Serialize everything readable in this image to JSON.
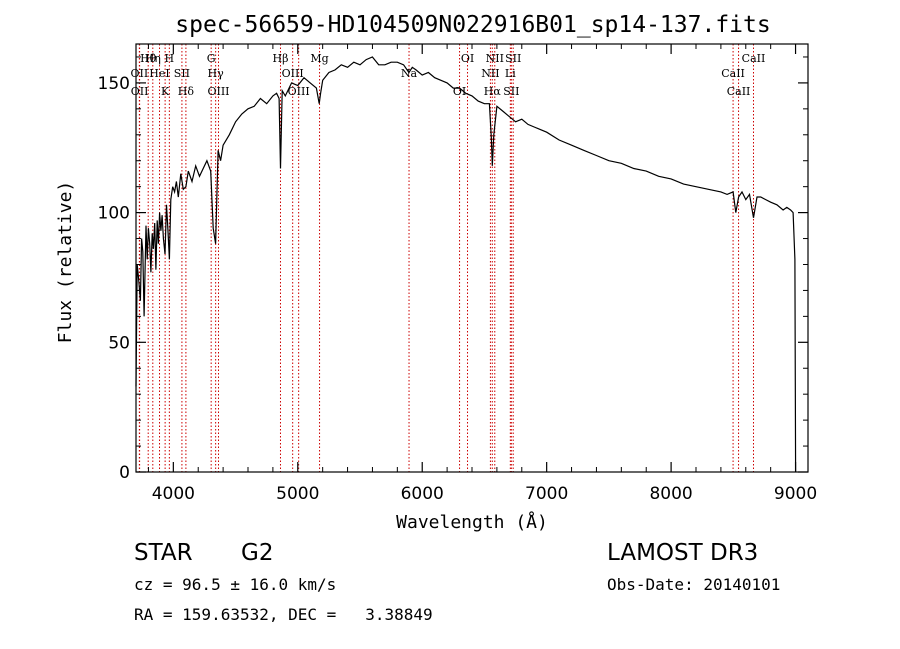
{
  "chart_data": {
    "type": "line",
    "title": "spec-56659-HD104509N022916B01_sp14-137.fits",
    "xlabel": "Wavelength (Å)",
    "ylabel": "Flux (relative)",
    "xlim": [
      3700,
      9100
    ],
    "ylim": [
      0,
      165
    ],
    "xticks": [
      4000,
      5000,
      6000,
      7000,
      8000,
      9000
    ],
    "yticks": [
      0,
      50,
      100,
      150
    ],
    "ytick_labels": [
      "0",
      "50",
      "100",
      "150"
    ],
    "grid": false,
    "series": [
      {
        "name": "spectrum",
        "x": [
          3700,
          3710,
          3720,
          3735,
          3745,
          3755,
          3765,
          3780,
          3790,
          3800,
          3810,
          3820,
          3830,
          3840,
          3850,
          3860,
          3870,
          3880,
          3890,
          3900,
          3910,
          3920,
          3933,
          3945,
          3955,
          3968,
          3980,
          3995,
          4010,
          4025,
          4040,
          4060,
          4080,
          4101,
          4120,
          4150,
          4180,
          4210,
          4240,
          4270,
          4300,
          4320,
          4340,
          4360,
          4380,
          4400,
          4450,
          4500,
          4550,
          4600,
          4650,
          4700,
          4750,
          4800,
          4830,
          4850,
          4861,
          4875,
          4900,
          4950,
          5000,
          5050,
          5100,
          5150,
          5172,
          5183,
          5200,
          5250,
          5300,
          5350,
          5400,
          5450,
          5500,
          5550,
          5600,
          5650,
          5700,
          5750,
          5800,
          5850,
          5893,
          5920,
          5950,
          6000,
          6050,
          6100,
          6150,
          6200,
          6250,
          6300,
          6350,
          6400,
          6450,
          6500,
          6540,
          6555,
          6563,
          6575,
          6600,
          6650,
          6700,
          6750,
          6800,
          6850,
          6900,
          6950,
          7000,
          7100,
          7200,
          7300,
          7400,
          7500,
          7600,
          7700,
          7800,
          7900,
          8000,
          8100,
          8200,
          8300,
          8400,
          8450,
          8498,
          8520,
          8542,
          8570,
          8600,
          8630,
          8662,
          8690,
          8720,
          8760,
          8800,
          8850,
          8900,
          8930,
          8960,
          8980,
          8995,
          9000
        ],
        "y": [
          33,
          80,
          75,
          66,
          90,
          85,
          60,
          95,
          82,
          94,
          88,
          77,
          92,
          86,
          96,
          78,
          97,
          88,
          100,
          93,
          99,
          90,
          84,
          103,
          95,
          82,
          105,
          110,
          108,
          112,
          106,
          115,
          109,
          110,
          116,
          112,
          118,
          114,
          117,
          120,
          116,
          94,
          88,
          124,
          120,
          126,
          130,
          135,
          138,
          140,
          141,
          144,
          142,
          145,
          146,
          144,
          117,
          147,
          145,
          150,
          149,
          152,
          150,
          148,
          142,
          146,
          151,
          154,
          155,
          157,
          156,
          158,
          157,
          159,
          160,
          157,
          157,
          158,
          158,
          157,
          154,
          156,
          155,
          153,
          154,
          152,
          151,
          150,
          148,
          148,
          146,
          145,
          143,
          142,
          142,
          129,
          118,
          130,
          141,
          139,
          137,
          135,
          136,
          134,
          133,
          132,
          131,
          128,
          126,
          124,
          122,
          120,
          119,
          117,
          116,
          114,
          113,
          111,
          110,
          109,
          108,
          107,
          108,
          100,
          106,
          108,
          105,
          107,
          98,
          106,
          106,
          105,
          104,
          103,
          101,
          102,
          101,
          100,
          82,
          0
        ]
      }
    ],
    "line_markers": [
      {
        "label": "Hθ",
        "wavelength": 3798
      },
      {
        "label": "OII",
        "wavelength": 3727
      },
      {
        "label": "OII",
        "wavelength": 3729
      },
      {
        "label": "Hη",
        "wavelength": 3835
      },
      {
        "label": "HeI",
        "wavelength": 3889
      },
      {
        "label": "K",
        "wavelength": 3934
      },
      {
        "label": "H",
        "wavelength": 3968
      },
      {
        "label": "SII",
        "wavelength": 4069
      },
      {
        "label": "Hδ",
        "wavelength": 4101
      },
      {
        "label": "G",
        "wavelength": 4304
      },
      {
        "label": "Hγ",
        "wavelength": 4340
      },
      {
        "label": "OIII",
        "wavelength": 4363
      },
      {
        "label": "Hβ",
        "wavelength": 4861
      },
      {
        "label": "OIII",
        "wavelength": 4959
      },
      {
        "label": "OIII",
        "wavelength": 5007
      },
      {
        "label": "Mg",
        "wavelength": 5175
      },
      {
        "label": "Na",
        "wavelength": 5894
      },
      {
        "label": "OI",
        "wavelength": 6300
      },
      {
        "label": "OI",
        "wavelength": 6364
      },
      {
        "label": "NII",
        "wavelength": 6548
      },
      {
        "label": "Hα",
        "wavelength": 6563
      },
      {
        "label": "NII",
        "wavelength": 6583
      },
      {
        "label": "Li",
        "wavelength": 6708
      },
      {
        "label": "SII",
        "wavelength": 6716
      },
      {
        "label": "SII",
        "wavelength": 6731
      },
      {
        "label": "CaII",
        "wavelength": 8498
      },
      {
        "label": "CaII",
        "wavelength": 8542
      },
      {
        "label": "CaII",
        "wavelength": 8662
      }
    ]
  },
  "info": {
    "class_label": "STAR",
    "subclass": "G2",
    "survey": "LAMOST DR3",
    "redshift": "cz = 96.5 ± 16.0 km/s",
    "obs_date": "Obs-Date: 20140101",
    "coords": "RA = 159.63532, DEC =   3.38849"
  },
  "colors": {
    "axis": "#000000",
    "spectrum": "#000000",
    "marker": "#cc0000"
  }
}
